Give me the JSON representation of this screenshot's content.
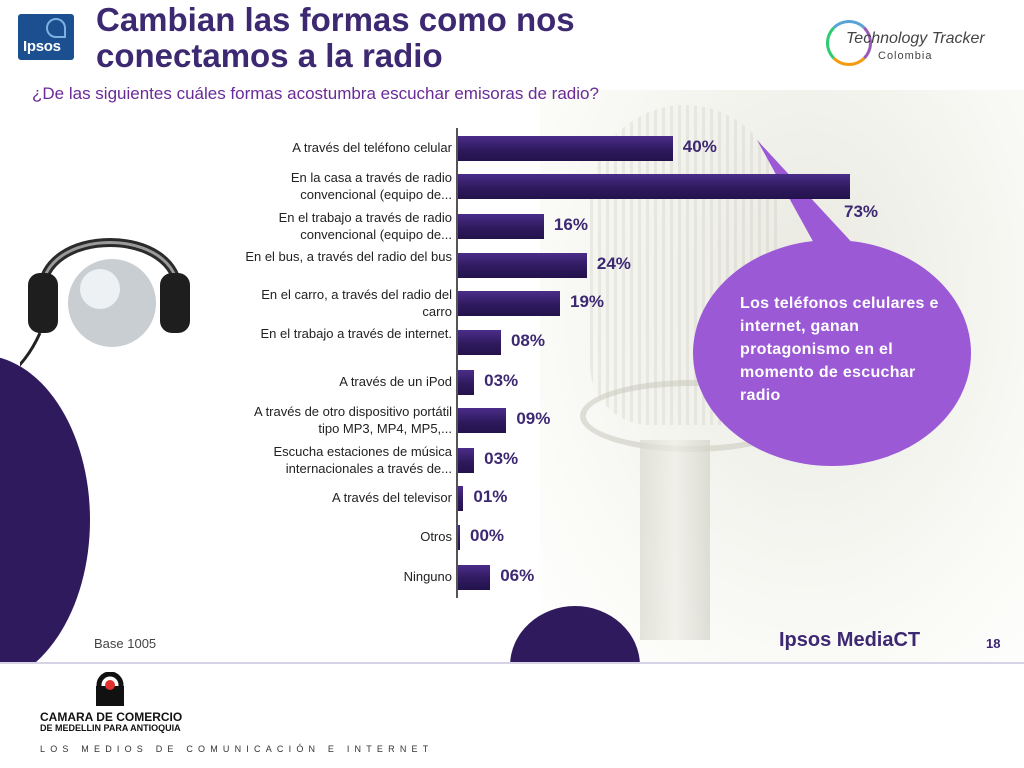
{
  "header": {
    "logo_text": "Ipsos",
    "title": "Cambian las formas como nos conectamos a la radio",
    "subtitle": "¿De las siguientes cuáles formas acostumbra escuchar emisoras de radio?",
    "partner_logo": "Technology Tracker",
    "partner_sub": "Colombia"
  },
  "chart_data": {
    "type": "bar",
    "orientation": "horizontal",
    "title": "¿De las siguientes cuáles formas acostumbra escuchar emisoras de radio?",
    "categories": [
      "A través del teléfono celular",
      "En la casa a través de radio convencional (equipo de...",
      "En el trabajo a través de radio convencional (equipo de...",
      "En el bus, a través del radio del bus",
      "En el carro, a través del radio del carro",
      "En el trabajo a través de internet.",
      "A través de un iPod",
      "A través de otro dispositivo portátil tipo MP3, MP4, MP5,...",
      "Escucha estaciones de música internacionales a través de...",
      "A través del televisor",
      "Otros",
      "Ninguno"
    ],
    "values": [
      40,
      73,
      16,
      24,
      19,
      8,
      3,
      9,
      3,
      1,
      0,
      6
    ],
    "value_labels": [
      "40%",
      "73%",
      "16%",
      "24%",
      "19%",
      "08%",
      "03%",
      "09%",
      "03%",
      "01%",
      "00%",
      "06%"
    ],
    "unit": "%",
    "xlim": [
      0,
      100
    ],
    "grid": false
  },
  "bubble": {
    "text": "Los teléfonos celulares e internet, ganan protagonismo en el momento de escuchar radio",
    "color": "#9b59d6"
  },
  "footer": {
    "base": "Base 1005",
    "brand": "Ipsos MediaCT",
    "page": "18"
  },
  "org": {
    "name": "CAMARA DE COMERCIO",
    "name_line2": "DE MEDELLIN PARA ANTIOQUIA",
    "tagline": "LOS MEDIOS DE COMUNICACIÓN E INTERNET"
  },
  "colors": {
    "bar": "#2f1a5e",
    "title": "#3d2872",
    "subtitle": "#6a2a97",
    "accent": "#9b59d6"
  }
}
